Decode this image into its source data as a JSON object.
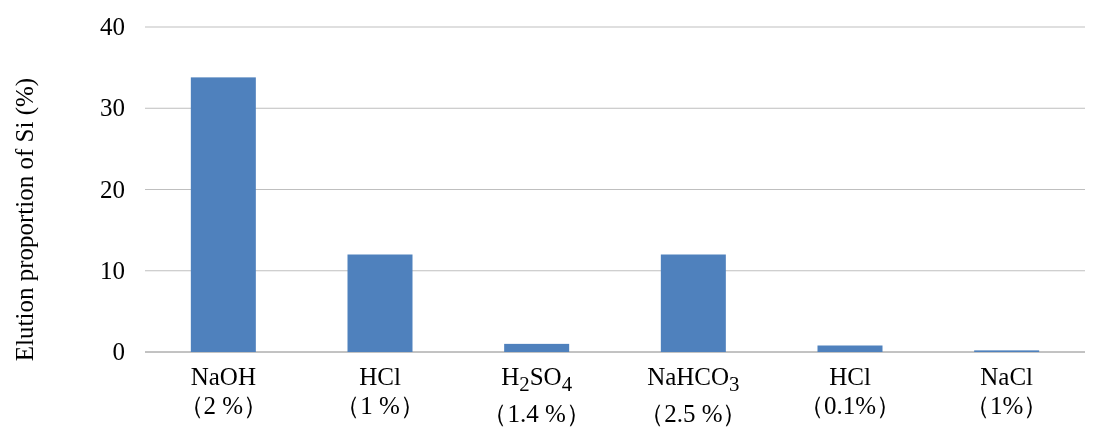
{
  "chart_data": {
    "type": "bar",
    "ylabel": "Elution proportion of Si (%)",
    "categories": [
      "NaOH （2 %）",
      "HCl （1 %）",
      "H$_{2}$SO$_{4}$ （1.4 %）",
      "NaHCO$_{3}$ （2.5 %）",
      "HCl （0.1%）",
      "NaCl （1%）"
    ],
    "values": [
      33.8,
      12,
      1,
      12,
      0.8,
      0.2
    ],
    "color": "#4f81bd",
    "ylim": [
      0,
      40
    ],
    "yticks": [
      0,
      10,
      20,
      30,
      40
    ],
    "grid": "y"
  }
}
